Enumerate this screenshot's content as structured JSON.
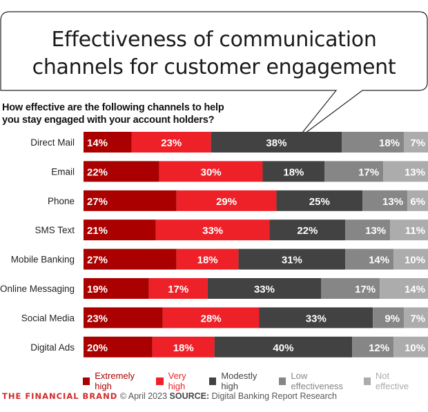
{
  "header": {
    "title_line1": "Effectiveness of communication",
    "title_line2": "channels for customer engagement",
    "question_line1": "How effective are the following channels to help",
    "question_line2": "you stay engaged with your account holders?"
  },
  "chart_data": {
    "type": "bar",
    "orientation": "horizontal",
    "stacked": true,
    "title": "Effectiveness of communication channels for customer engagement",
    "subtitle": "How effective are the following channels to help you stay engaged with your account holders?",
    "xlabel": "",
    "ylabel": "",
    "xlim": [
      0,
      100
    ],
    "unit": "%",
    "grid": false,
    "legend_position": "bottom",
    "categories": [
      "Direct Mail",
      "Email",
      "Phone",
      "SMS Text",
      "Mobile Banking",
      "Online Messaging",
      "Social Media",
      "Digital Ads"
    ],
    "series": [
      {
        "name": "Extremely high",
        "color": "#aa0000",
        "label_color": "#ffffff",
        "values": [
          14,
          22,
          27,
          21,
          27,
          19,
          23,
          20
        ]
      },
      {
        "name": "Very high",
        "color": "#ee2128",
        "label_color": "#ffffff",
        "values": [
          23,
          30,
          29,
          33,
          18,
          17,
          28,
          18
        ]
      },
      {
        "name": "Modestly high",
        "color": "#424242",
        "label_color": "#ffffff",
        "values": [
          38,
          18,
          25,
          22,
          31,
          33,
          33,
          40
        ]
      },
      {
        "name": "Low effectiveness",
        "color": "#868686",
        "label_color": "#ffffff",
        "values": [
          18,
          17,
          13,
          13,
          14,
          17,
          9,
          12
        ]
      },
      {
        "name": "Not effective",
        "color": "#acacac",
        "label_color": "#ffffff",
        "values": [
          7,
          13,
          6,
          11,
          10,
          14,
          7,
          10
        ]
      }
    ]
  },
  "legend": {
    "items": [
      {
        "label": "Extremely high",
        "color": "#aa0000",
        "text_color": "#aa0000"
      },
      {
        "label": "Very high",
        "color": "#ee2128",
        "text_color": "#ee2128"
      },
      {
        "label": "Modestly high",
        "color": "#424242",
        "text_color": "#424242"
      },
      {
        "label": "Low effectiveness",
        "color": "#868686",
        "text_color": "#868686"
      },
      {
        "label": "Not effective",
        "color": "#acacac",
        "text_color": "#acacac"
      }
    ]
  },
  "footer": {
    "brand": "THE FINANCIAL BRAND",
    "copyright": "© April 2023",
    "source_label": "SOURCE:",
    "source_text": "Digital Banking Report Research"
  }
}
